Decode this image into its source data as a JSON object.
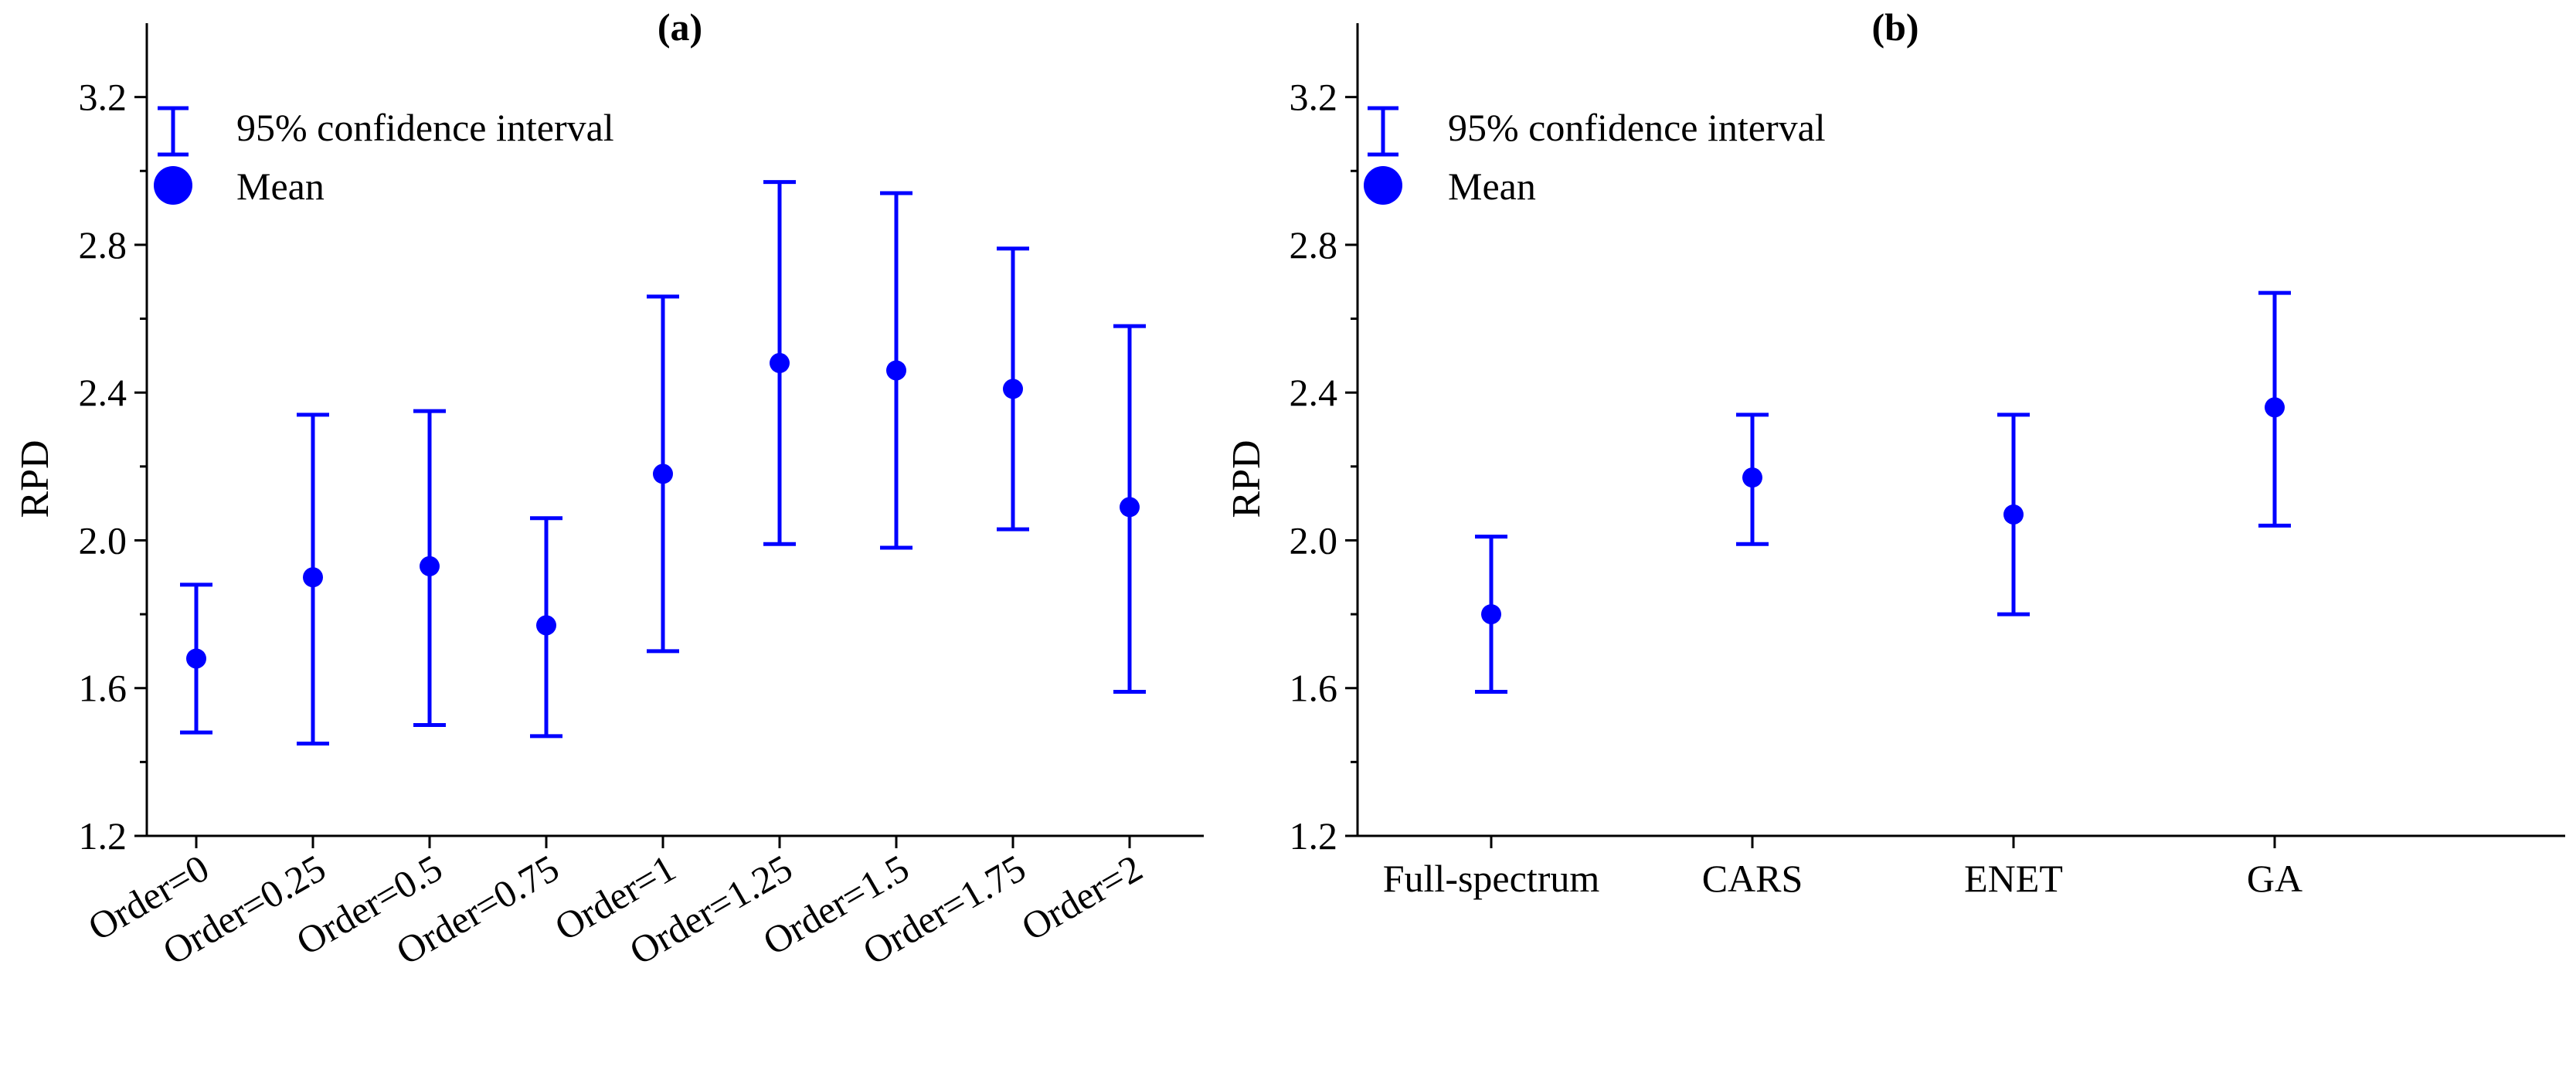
{
  "chart_data": [
    {
      "type": "errorbar",
      "panel": "(a)",
      "ylabel": "RPD",
      "ylim": [
        1.2,
        3.4
      ],
      "yticks": [
        1.2,
        1.6,
        2.0,
        2.4,
        2.8,
        3.2
      ],
      "ytick_labels": [
        "1.2",
        "1.6",
        "2.0",
        "2.4",
        "2.8",
        "3.2"
      ],
      "categories": [
        "Order=0",
        "Order=0.25",
        "Order=0.5",
        "Order=0.75",
        "Order=1",
        "Order=1.25",
        "Order=1.5",
        "Order=1.75",
        "Order=2"
      ],
      "mean": [
        1.68,
        1.9,
        1.93,
        1.77,
        2.18,
        2.48,
        2.46,
        2.41,
        2.09
      ],
      "ci_low": [
        1.48,
        1.45,
        1.5,
        1.47,
        1.7,
        1.99,
        1.98,
        2.03,
        1.59
      ],
      "ci_high": [
        1.88,
        2.34,
        2.35,
        2.06,
        2.66,
        2.97,
        2.94,
        2.79,
        2.58
      ],
      "legend": [
        "95% confidence interval",
        "Mean"
      ],
      "color": "#0000ff"
    },
    {
      "type": "errorbar",
      "panel": "(b)",
      "ylabel": "RPD",
      "ylim": [
        1.2,
        3.4
      ],
      "yticks": [
        1.2,
        1.6,
        2.0,
        2.4,
        2.8,
        3.2
      ],
      "ytick_labels": [
        "1.2",
        "1.6",
        "2.0",
        "2.4",
        "2.8",
        "3.2"
      ],
      "categories": [
        "Full-spectrum",
        "CARS",
        "ENET",
        "GA"
      ],
      "mean": [
        1.8,
        2.17,
        2.07,
        2.36
      ],
      "ci_low": [
        1.59,
        1.99,
        1.8,
        2.04
      ],
      "ci_high": [
        2.01,
        2.34,
        2.34,
        2.67
      ],
      "legend": [
        "95% confidence interval",
        "Mean"
      ],
      "color": "#0000ff"
    }
  ]
}
